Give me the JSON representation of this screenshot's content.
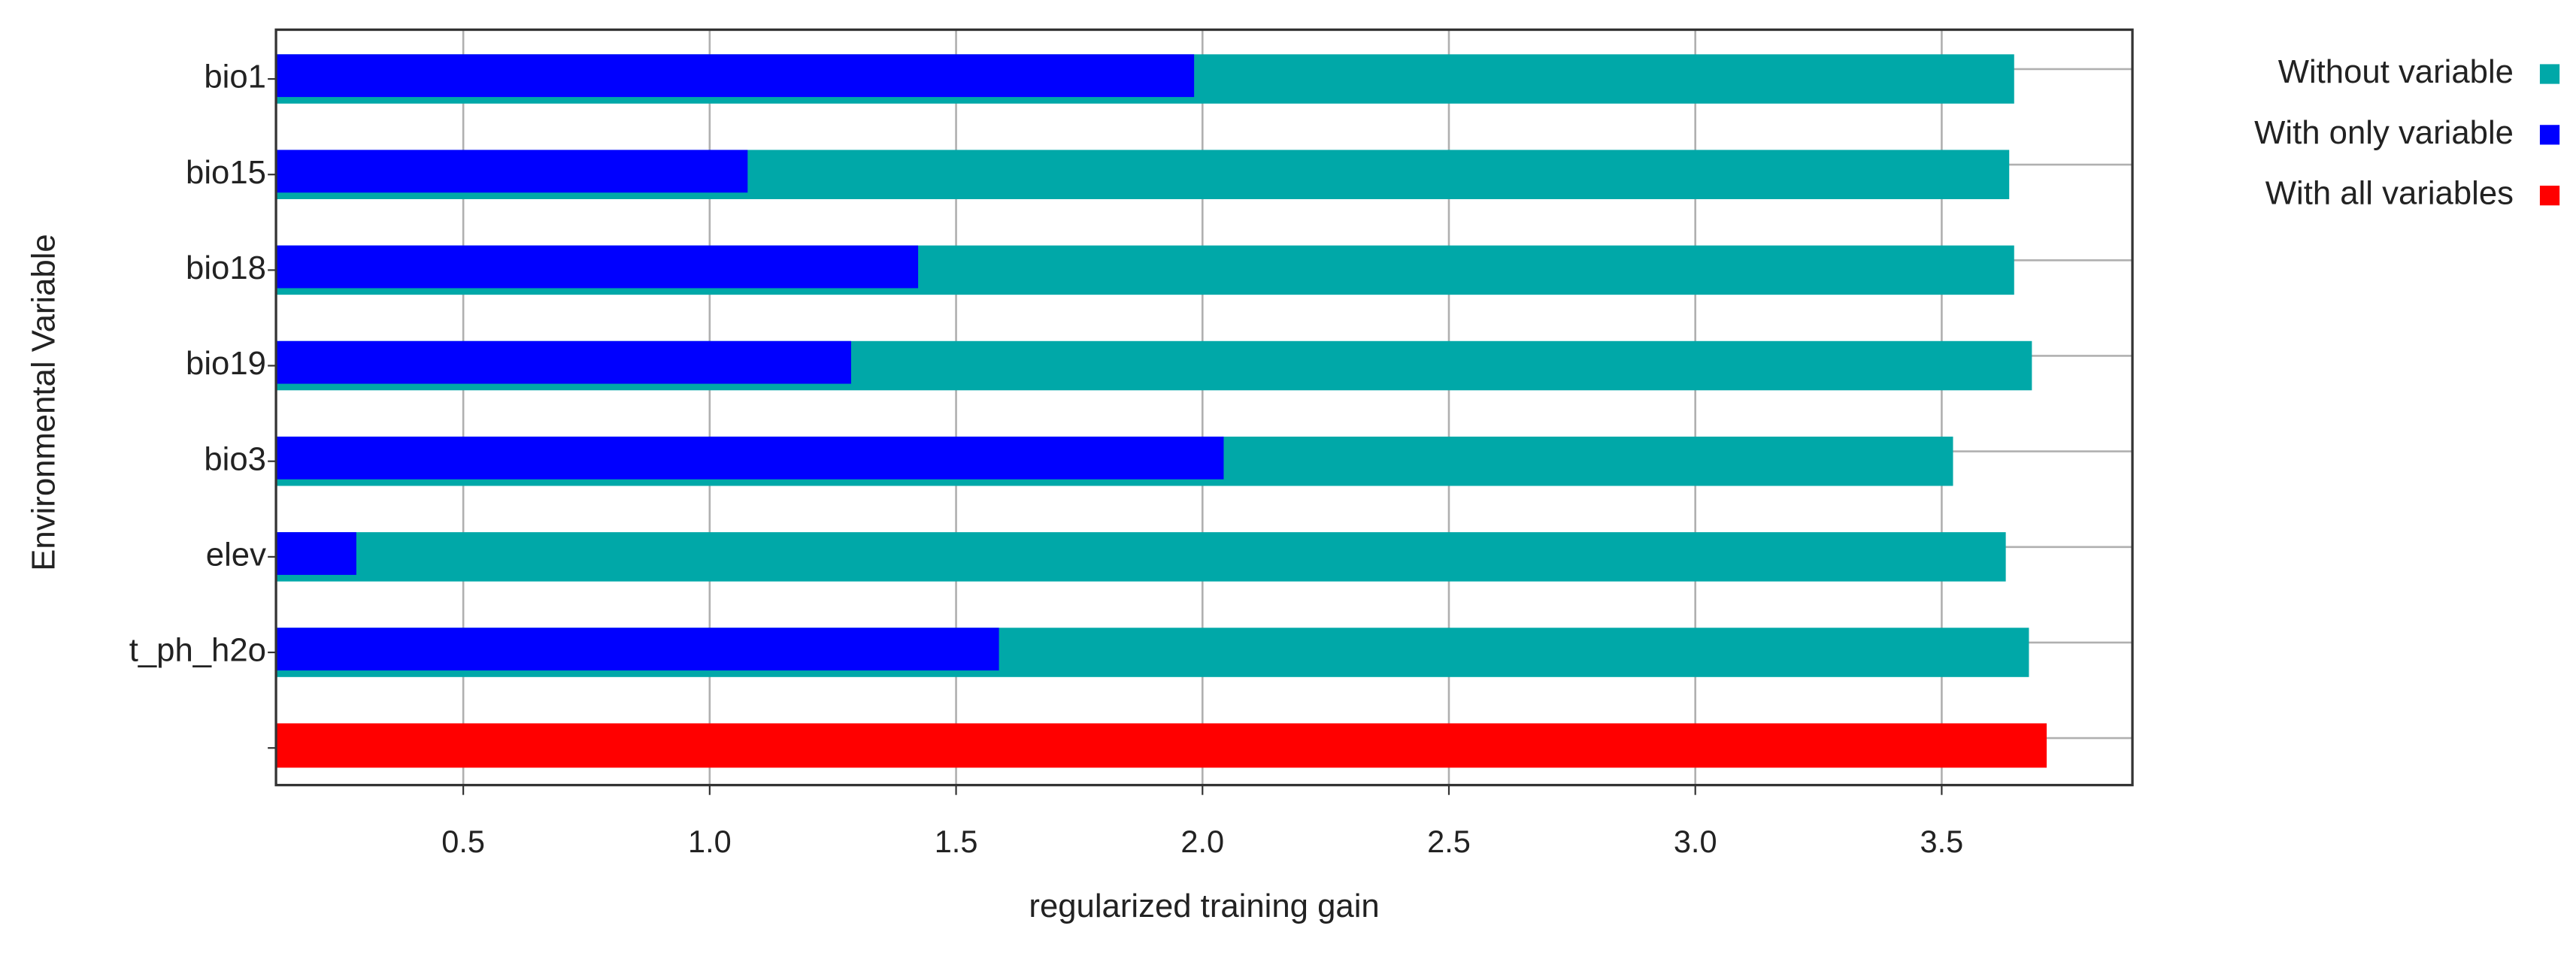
{
  "chart_data": {
    "type": "bar",
    "orientation": "horizontal",
    "xlabel": "regularized training gain",
    "ylabel": "Environmental Variable",
    "categories": [
      "bio1",
      "bio15",
      "bio18",
      "bio19",
      "bio3",
      "elev",
      "t_ph_h2o",
      null
    ],
    "series": [
      {
        "name": "Without variable",
        "color": "#00a8a8",
        "values": [
          3.647,
          3.637,
          3.647,
          3.683,
          3.523,
          3.63,
          3.677,
          null
        ]
      },
      {
        "name": "With only variable",
        "color": "#0000ff",
        "values": [
          1.983,
          1.077,
          1.423,
          1.287,
          2.043,
          0.283,
          1.587,
          null
        ]
      },
      {
        "name": "With all variables",
        "color": "#ff0000",
        "values": [
          null,
          null,
          null,
          null,
          null,
          null,
          null,
          3.713
        ]
      }
    ],
    "xlim": [
      0.12,
      3.887
    ],
    "xticks": [
      0.5,
      {
        "value": 1,
        "label": "1.0"
      },
      1.5,
      {
        "value": 2,
        "label": "2.0"
      },
      2.5,
      {
        "value": 3,
        "label": "3.0"
      },
      3.5
    ],
    "grid": true,
    "legend": "right"
  }
}
